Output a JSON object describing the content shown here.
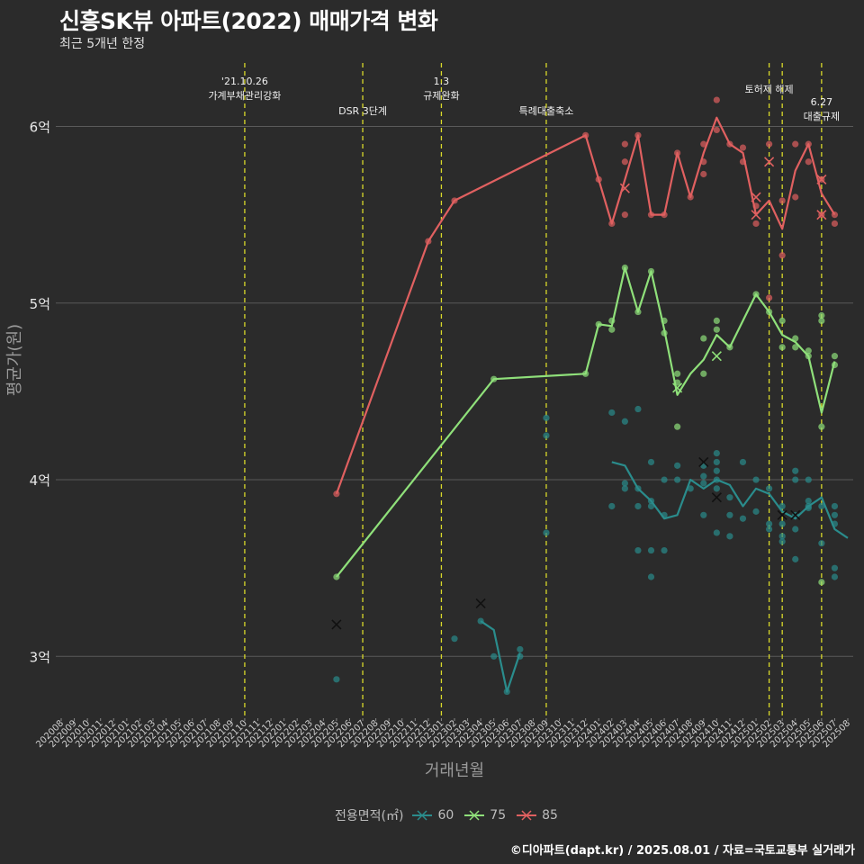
{
  "title": "신흥SK뷰 아파트(2022) 매매가격 변화",
  "subtitle": "최근 5개년 한정",
  "credit": "©디아파트(dapt.kr) / 2025.08.01 / 자료=국토교통부 실거래가",
  "colors": {
    "background": "#2b2b2b",
    "grid": "#5a5a5a",
    "event_line": "#d9d92a",
    "s60": "#2a8c8c",
    "s75": "#8fe07a",
    "s85": "#e06060"
  },
  "chart_data": {
    "type": "line",
    "xlabel": "거래년월",
    "ylabel": "평균가(원)",
    "x_ticks": [
      "202008",
      "202009",
      "202010",
      "202011",
      "202012",
      "202101",
      "202102",
      "202103",
      "202104",
      "202105",
      "202106",
      "202107",
      "202108",
      "202109",
      "202110",
      "202111",
      "202112",
      "202201",
      "202202",
      "202203",
      "202204",
      "202205",
      "202206",
      "202207",
      "202208",
      "202209",
      "202210",
      "202211",
      "202212",
      "202301",
      "202302",
      "202303",
      "202304",
      "202305",
      "202306",
      "202307",
      "202308",
      "202309",
      "202310",
      "202311",
      "202312",
      "202401",
      "202402",
      "202403",
      "202404",
      "202405",
      "202406",
      "202407",
      "202408",
      "202409",
      "202410",
      "202411",
      "202412",
      "202501",
      "202502",
      "202503",
      "202504",
      "202505",
      "202506",
      "202507",
      "202508"
    ],
    "y_ticks": [
      {
        "value": 3.0,
        "label": "3억"
      },
      {
        "value": 4.0,
        "label": "4억"
      },
      {
        "value": 5.0,
        "label": "5억"
      },
      {
        "value": 6.0,
        "label": "6억"
      }
    ],
    "ylim": [
      2.65,
      6.4
    ],
    "legend": {
      "title": "전용면적(㎡)",
      "position": "bottom"
    },
    "events": [
      {
        "x": "202110",
        "label": [
          "'21.10.26",
          "가계부채관리강화"
        ]
      },
      {
        "x": "202207",
        "label": [
          "DSR 3단계"
        ]
      },
      {
        "x": "202301",
        "label": [
          "1.3",
          "규제완화"
        ]
      },
      {
        "x": "202309",
        "label": [
          "특례대출축소"
        ]
      },
      {
        "x": "202502",
        "label": [
          "토허제 해제"
        ]
      },
      {
        "x": "202503",
        "label": []
      },
      {
        "x": "202506",
        "label": [
          "6.27",
          "대출규제"
        ]
      }
    ],
    "series": [
      {
        "name": "60",
        "color": "#2a8c8c",
        "line": [
          [
            "202304",
            3.2
          ],
          [
            "202305",
            3.15
          ],
          [
            "202306",
            2.8
          ],
          [
            "202307",
            3.02
          ],
          [
            "202402",
            4.1
          ],
          [
            "202403",
            4.08
          ],
          [
            "202404",
            3.95
          ],
          [
            "202405",
            3.88
          ],
          [
            "202406",
            3.78
          ],
          [
            "202407",
            3.8
          ],
          [
            "202408",
            4.0
          ],
          [
            "202409",
            3.95
          ],
          [
            "202410",
            4.0
          ],
          [
            "202411",
            3.97
          ],
          [
            "202412",
            3.85
          ],
          [
            "202501",
            3.95
          ],
          [
            "202502",
            3.92
          ],
          [
            "202503",
            3.82
          ],
          [
            "202504",
            3.78
          ],
          [
            "202505",
            3.85
          ],
          [
            "202506",
            3.9
          ],
          [
            "202507",
            3.72
          ],
          [
            "202508",
            3.67
          ]
        ],
        "points": [
          [
            "202205",
            2.87
          ],
          [
            "202302",
            3.1
          ],
          [
            "202304",
            3.2
          ],
          [
            "202305",
            3.0
          ],
          [
            "202306",
            2.8
          ],
          [
            "202307",
            3.0
          ],
          [
            "202307",
            3.04
          ],
          [
            "202309",
            4.35
          ],
          [
            "202309",
            4.25
          ],
          [
            "202309",
            3.7
          ],
          [
            "202402",
            4.38
          ],
          [
            "202402",
            3.85
          ],
          [
            "202403",
            4.33
          ],
          [
            "202403",
            3.98
          ],
          [
            "202403",
            3.95
          ],
          [
            "202404",
            4.4
          ],
          [
            "202404",
            3.95
          ],
          [
            "202404",
            3.85
          ],
          [
            "202404",
            3.6
          ],
          [
            "202405",
            4.1
          ],
          [
            "202405",
            3.88
          ],
          [
            "202405",
            3.85
          ],
          [
            "202405",
            3.6
          ],
          [
            "202405",
            3.45
          ],
          [
            "202406",
            4.0
          ],
          [
            "202406",
            3.8
          ],
          [
            "202406",
            3.6
          ],
          [
            "202407",
            4.08
          ],
          [
            "202407",
            4.0
          ],
          [
            "202408",
            3.95
          ],
          [
            "202409",
            4.08
          ],
          [
            "202409",
            4.02
          ],
          [
            "202409",
            3.98
          ],
          [
            "202409",
            3.8
          ],
          [
            "202410",
            4.15
          ],
          [
            "202410",
            4.1
          ],
          [
            "202410",
            4.05
          ],
          [
            "202410",
            4.0
          ],
          [
            "202410",
            3.95
          ],
          [
            "202410",
            3.7
          ],
          [
            "202411",
            3.9
          ],
          [
            "202411",
            3.8
          ],
          [
            "202411",
            3.68
          ],
          [
            "202412",
            4.1
          ],
          [
            "202412",
            3.78
          ],
          [
            "202501",
            4.0
          ],
          [
            "202501",
            3.82
          ],
          [
            "202502",
            3.95
          ],
          [
            "202502",
            3.75
          ],
          [
            "202502",
            3.72
          ],
          [
            "202503",
            3.85
          ],
          [
            "202503",
            3.75
          ],
          [
            "202503",
            3.68
          ],
          [
            "202503",
            3.65
          ],
          [
            "202504",
            4.05
          ],
          [
            "202504",
            4.0
          ],
          [
            "202504",
            3.8
          ],
          [
            "202504",
            3.72
          ],
          [
            "202504",
            3.55
          ],
          [
            "202505",
            4.0
          ],
          [
            "202505",
            3.88
          ],
          [
            "202505",
            3.85
          ],
          [
            "202505",
            3.84
          ],
          [
            "202506",
            3.85
          ],
          [
            "202506",
            3.64
          ],
          [
            "202507",
            3.85
          ],
          [
            "202507",
            3.8
          ],
          [
            "202507",
            3.75
          ],
          [
            "202507",
            3.5
          ],
          [
            "202507",
            3.45
          ]
        ],
        "x_marks": [
          [
            "202205",
            3.18
          ],
          [
            "202304",
            3.3
          ],
          [
            "202409",
            4.1
          ],
          [
            "202410",
            3.9
          ],
          [
            "202503",
            3.8
          ],
          [
            "202504",
            3.8
          ]
        ]
      },
      {
        "name": "75",
        "color": "#8fe07a",
        "line": [
          [
            "202205",
            3.45
          ],
          [
            "202305",
            4.57
          ],
          [
            "202312",
            4.6
          ],
          [
            "202401",
            4.88
          ],
          [
            "202402",
            4.87
          ],
          [
            "202403",
            5.2
          ],
          [
            "202404",
            4.95
          ],
          [
            "202405",
            5.18
          ],
          [
            "202406",
            4.85
          ],
          [
            "202407",
            4.48
          ],
          [
            "202408",
            4.6
          ],
          [
            "202409",
            4.68
          ],
          [
            "202410",
            4.82
          ],
          [
            "202411",
            4.75
          ],
          [
            "202501",
            5.05
          ],
          [
            "202502",
            4.95
          ],
          [
            "202503",
            4.82
          ],
          [
            "202504",
            4.78
          ],
          [
            "202505",
            4.7
          ],
          [
            "202506",
            4.38
          ],
          [
            "202507",
            4.67
          ]
        ],
        "points": [
          [
            "202205",
            3.45
          ],
          [
            "202305",
            4.57
          ],
          [
            "202312",
            4.6
          ],
          [
            "202401",
            4.88
          ],
          [
            "202402",
            4.9
          ],
          [
            "202402",
            4.85
          ],
          [
            "202403",
            5.2
          ],
          [
            "202404",
            4.95
          ],
          [
            "202405",
            5.18
          ],
          [
            "202406",
            4.9
          ],
          [
            "202406",
            4.83
          ],
          [
            "202407",
            4.6
          ],
          [
            "202407",
            4.55
          ],
          [
            "202407",
            4.3
          ],
          [
            "202409",
            4.8
          ],
          [
            "202409",
            4.6
          ],
          [
            "202410",
            4.9
          ],
          [
            "202410",
            4.85
          ],
          [
            "202411",
            4.75
          ],
          [
            "202501",
            5.05
          ],
          [
            "202502",
            4.95
          ],
          [
            "202503",
            4.9
          ],
          [
            "202503",
            4.75
          ],
          [
            "202504",
            4.8
          ],
          [
            "202504",
            4.75
          ],
          [
            "202505",
            4.73
          ],
          [
            "202505",
            4.7
          ],
          [
            "202506",
            4.93
          ],
          [
            "202506",
            4.9
          ],
          [
            "202506",
            4.3
          ],
          [
            "202506",
            3.42
          ],
          [
            "202507",
            4.7
          ],
          [
            "202507",
            4.65
          ]
        ],
        "x_marks": [
          [
            "202407",
            4.52
          ],
          [
            "202410",
            4.7
          ]
        ]
      },
      {
        "name": "85",
        "color": "#e06060",
        "line": [
          [
            "202205",
            3.92
          ],
          [
            "202212",
            5.35
          ],
          [
            "202302",
            5.58
          ],
          [
            "202312",
            5.95
          ],
          [
            "202401",
            5.7
          ],
          [
            "202402",
            5.45
          ],
          [
            "202403",
            5.7
          ],
          [
            "202404",
            5.95
          ],
          [
            "202405",
            5.5
          ],
          [
            "202406",
            5.5
          ],
          [
            "202407",
            5.85
          ],
          [
            "202408",
            5.6
          ],
          [
            "202409",
            5.85
          ],
          [
            "202410",
            6.05
          ],
          [
            "202411",
            5.9
          ],
          [
            "202412",
            5.85
          ],
          [
            "202501",
            5.5
          ],
          [
            "202502",
            5.58
          ],
          [
            "202503",
            5.42
          ],
          [
            "202504",
            5.75
          ],
          [
            "202505",
            5.9
          ],
          [
            "202506",
            5.62
          ],
          [
            "202507",
            5.5
          ]
        ],
        "points": [
          [
            "202205",
            3.92
          ],
          [
            "202212",
            5.35
          ],
          [
            "202302",
            5.58
          ],
          [
            "202312",
            5.95
          ],
          [
            "202401",
            5.7
          ],
          [
            "202402",
            5.45
          ],
          [
            "202403",
            5.9
          ],
          [
            "202403",
            5.8
          ],
          [
            "202403",
            5.5
          ],
          [
            "202404",
            5.95
          ],
          [
            "202405",
            5.5
          ],
          [
            "202406",
            5.5
          ],
          [
            "202407",
            5.85
          ],
          [
            "202408",
            5.6
          ],
          [
            "202409",
            5.9
          ],
          [
            "202409",
            5.8
          ],
          [
            "202409",
            5.73
          ],
          [
            "202410",
            6.15
          ],
          [
            "202410",
            5.98
          ],
          [
            "202411",
            5.9
          ],
          [
            "202412",
            5.88
          ],
          [
            "202412",
            5.8
          ],
          [
            "202501",
            5.55
          ],
          [
            "202501",
            5.45
          ],
          [
            "202502",
            5.9
          ],
          [
            "202502",
            5.03
          ],
          [
            "202503",
            5.58
          ],
          [
            "202503",
            5.27
          ],
          [
            "202504",
            5.9
          ],
          [
            "202504",
            5.6
          ],
          [
            "202505",
            5.9
          ],
          [
            "202505",
            5.8
          ],
          [
            "202506",
            5.7
          ],
          [
            "202506",
            5.5
          ],
          [
            "202507",
            5.5
          ],
          [
            "202507",
            5.45
          ]
        ],
        "x_marks": [
          [
            "202403",
            5.65
          ],
          [
            "202501",
            5.6
          ],
          [
            "202501",
            5.5
          ],
          [
            "202502",
            5.8
          ],
          [
            "202506",
            5.7
          ],
          [
            "202506",
            5.5
          ]
        ]
      }
    ]
  }
}
